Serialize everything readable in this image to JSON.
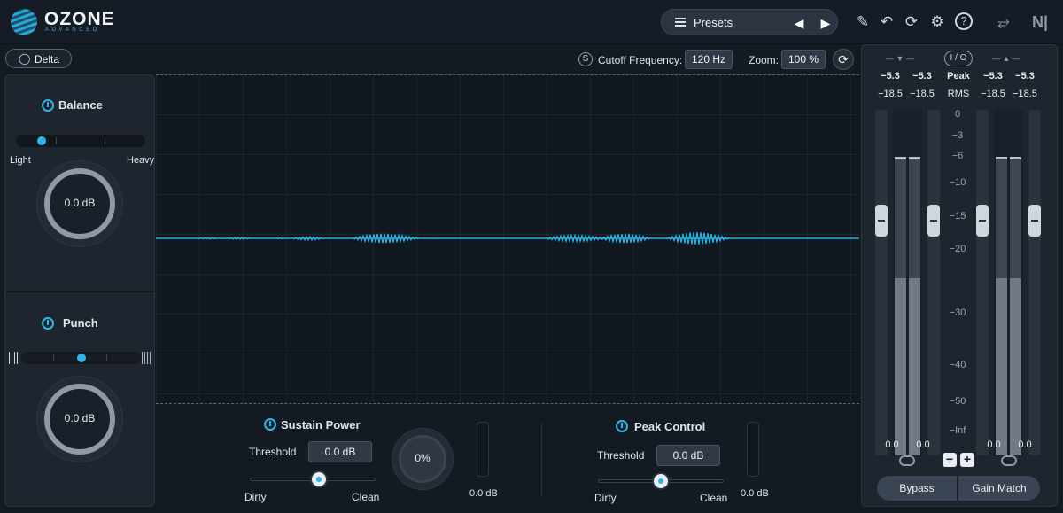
{
  "app": {
    "name": "OZONE",
    "edition": "ADVANCED"
  },
  "header": {
    "presets_label": "Presets",
    "icons": [
      "list-icon",
      "prev-arrow-icon",
      "next-arrow-icon",
      "pencil-icon",
      "undo-icon",
      "history-icon",
      "gear-icon",
      "help-icon",
      "routing-icon",
      "ni-logo-icon"
    ]
  },
  "delta": {
    "label": "Delta",
    "icon": "ear-icon"
  },
  "controls": {
    "solo_label": "S",
    "cutoff_label": "Cutoff Frequency:",
    "cutoff_value": "120 Hz",
    "zoom_label": "Zoom:",
    "zoom_value": "100 %",
    "reset_icon": "reset-icon"
  },
  "balance": {
    "title": "Balance",
    "left_label": "Light",
    "right_label": "Heavy",
    "knob_value": "0.0 dB",
    "slider_position": 0.2
  },
  "punch": {
    "title": "Punch",
    "knob_value": "0.0 dB",
    "slider_position": 0.5
  },
  "sustain": {
    "title": "Sustain Power",
    "threshold_label": "Threshold",
    "threshold_value": "0.0 dB",
    "left_label": "Dirty",
    "right_label": "Clean",
    "knob_value": "0%",
    "meter_value": "0.0 dB",
    "slider_position": 0.55
  },
  "peak": {
    "title": "Peak Control",
    "threshold_label": "Threshold",
    "threshold_value": "0.0 dB",
    "left_label": "Dirty",
    "right_label": "Clean",
    "meter_value": "0.0 dB",
    "slider_position": 0.5
  },
  "meters": {
    "io_label": "I / O",
    "peak_label": "Peak",
    "rms_label": "RMS",
    "in_peak": [
      "−5.3",
      "−5.3"
    ],
    "in_rms": [
      "−18.5",
      "−18.5"
    ],
    "out_peak": [
      "−5.3",
      "−5.3"
    ],
    "out_rms": [
      "−18.5",
      "−18.5"
    ],
    "scale": [
      "0",
      "−3",
      "−6",
      "−10",
      "−15",
      "−20",
      "−30",
      "−40",
      "−50",
      "−Inf"
    ],
    "in_gain": [
      "0.0",
      "0.0"
    ],
    "out_gain": [
      "0.0",
      "0.0"
    ],
    "minus_label": "−",
    "plus_label": "+",
    "bypass_label": "Bypass",
    "gain_match_label": "Gain Match"
  },
  "colors": {
    "accent": "#2fb4e8",
    "background": "#141a22",
    "panel": "#1e252f"
  }
}
